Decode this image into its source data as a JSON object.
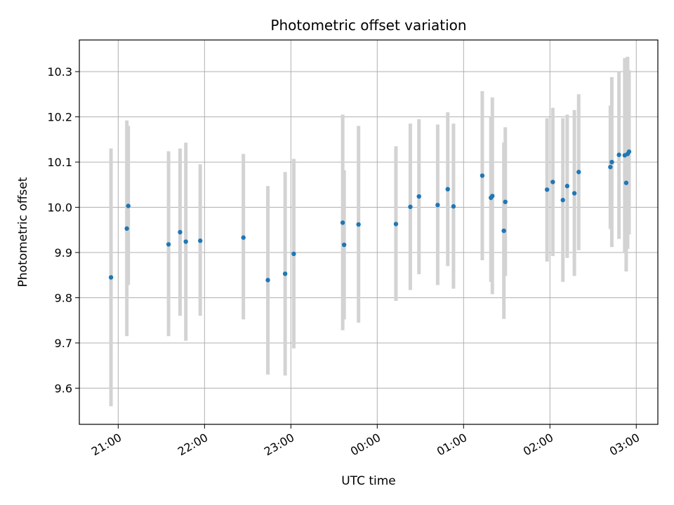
{
  "chart_data": {
    "type": "scatter",
    "title": "Photometric offset variation",
    "xlabel": "UTC time",
    "ylabel": "Photometric offset",
    "grid": true,
    "x_ticks": [
      "21:00",
      "22:00",
      "23:00",
      "00:00",
      "01:00",
      "02:00",
      "03:00"
    ],
    "x_tick_hours": [
      21,
      22,
      23,
      24,
      25,
      26,
      27
    ],
    "xlim": [
      20.55,
      27.25
    ],
    "y_ticks": [
      9.6,
      9.7,
      9.8,
      9.9,
      10.0,
      10.1,
      10.2,
      10.3
    ],
    "ylim": [
      9.52,
      10.37
    ],
    "point_color": "#1f77b4",
    "errorbar_color": "#d3d3d3",
    "points": [
      {
        "x": "20:55",
        "y": 9.845,
        "lo": 9.56,
        "hi": 10.13
      },
      {
        "x": "21:06",
        "y": 9.953,
        "lo": 9.715,
        "hi": 10.192
      },
      {
        "x": "21:07",
        "y": 10.003,
        "lo": 9.828,
        "hi": 10.18
      },
      {
        "x": "21:35",
        "y": 9.918,
        "lo": 9.715,
        "hi": 10.124
      },
      {
        "x": "21:43",
        "y": 9.945,
        "lo": 9.76,
        "hi": 10.13
      },
      {
        "x": "21:47",
        "y": 9.924,
        "lo": 9.705,
        "hi": 10.143
      },
      {
        "x": "21:57",
        "y": 9.926,
        "lo": 9.76,
        "hi": 10.095
      },
      {
        "x": "22:27",
        "y": 9.933,
        "lo": 9.752,
        "hi": 10.118
      },
      {
        "x": "22:44",
        "y": 9.839,
        "lo": 9.63,
        "hi": 10.047
      },
      {
        "x": "22:56",
        "y": 9.853,
        "lo": 9.628,
        "hi": 10.078
      },
      {
        "x": "23:02",
        "y": 9.897,
        "lo": 9.688,
        "hi": 10.107
      },
      {
        "x": "23:36",
        "y": 9.966,
        "lo": 9.728,
        "hi": 10.205
      },
      {
        "x": "23:37",
        "y": 9.917,
        "lo": 9.752,
        "hi": 10.082
      },
      {
        "x": "23:47",
        "y": 9.962,
        "lo": 9.745,
        "hi": 10.18
      },
      {
        "x": "00:13",
        "y": 9.963,
        "lo": 9.793,
        "hi": 10.135
      },
      {
        "x": "00:23",
        "y": 10.001,
        "lo": 9.817,
        "hi": 10.185
      },
      {
        "x": "00:29",
        "y": 10.024,
        "lo": 9.852,
        "hi": 10.195
      },
      {
        "x": "00:42",
        "y": 10.005,
        "lo": 9.828,
        "hi": 10.183
      },
      {
        "x": "00:49",
        "y": 10.04,
        "lo": 9.87,
        "hi": 10.21
      },
      {
        "x": "00:53",
        "y": 10.002,
        "lo": 9.82,
        "hi": 10.185
      },
      {
        "x": "01:13",
        "y": 10.07,
        "lo": 9.883,
        "hi": 10.257
      },
      {
        "x": "01:19",
        "y": 10.021,
        "lo": 9.835,
        "hi": 10.2
      },
      {
        "x": "01:20",
        "y": 10.025,
        "lo": 9.808,
        "hi": 10.243
      },
      {
        "x": "01:28",
        "y": 9.948,
        "lo": 9.753,
        "hi": 10.143
      },
      {
        "x": "01:29",
        "y": 10.012,
        "lo": 9.848,
        "hi": 10.177
      },
      {
        "x": "01:58",
        "y": 10.039,
        "lo": 9.88,
        "hi": 10.197
      },
      {
        "x": "02:02",
        "y": 10.056,
        "lo": 9.892,
        "hi": 10.22
      },
      {
        "x": "02:09",
        "y": 10.016,
        "lo": 9.835,
        "hi": 10.197
      },
      {
        "x": "02:12",
        "y": 10.047,
        "lo": 9.888,
        "hi": 10.205
      },
      {
        "x": "02:17",
        "y": 10.031,
        "lo": 9.848,
        "hi": 10.215
      },
      {
        "x": "02:20",
        "y": 10.078,
        "lo": 9.905,
        "hi": 10.25
      },
      {
        "x": "02:42",
        "y": 10.089,
        "lo": 9.952,
        "hi": 10.225
      },
      {
        "x": "02:43",
        "y": 10.1,
        "lo": 9.912,
        "hi": 10.288
      },
      {
        "x": "02:48",
        "y": 10.116,
        "lo": 9.93,
        "hi": 10.3
      },
      {
        "x": "02:52",
        "y": 10.115,
        "lo": 9.9,
        "hi": 10.33
      },
      {
        "x": "02:53",
        "y": 10.054,
        "lo": 9.858,
        "hi": 10.33
      },
      {
        "x": "02:54",
        "y": 10.118,
        "lo": 9.908,
        "hi": 10.333
      },
      {
        "x": "02:55",
        "y": 10.123,
        "lo": 9.94,
        "hi": 10.303
      }
    ]
  }
}
